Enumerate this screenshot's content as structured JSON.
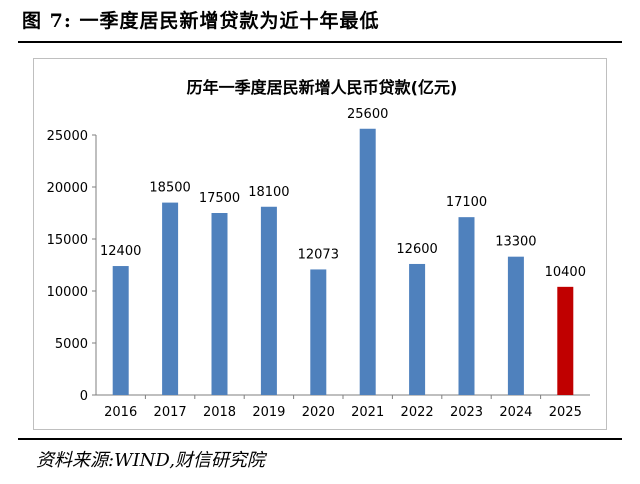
{
  "figure": {
    "title": "图 7:  一季度居民新增贷款为近十年最低",
    "source": "资料来源:WIND,财信研究院"
  },
  "chart_data": {
    "type": "bar",
    "title": "历年一季度居民新增人民币贷款(亿元)",
    "categories": [
      "2016",
      "2017",
      "2018",
      "2019",
      "2020",
      "2021",
      "2022",
      "2023",
      "2024",
      "2025"
    ],
    "values": [
      12400,
      18500,
      17500,
      18100,
      12073,
      25600,
      12600,
      17100,
      13300,
      10400
    ],
    "data_labels": [
      "12400",
      "18500",
      "17500",
      "18100",
      "12073",
      "25600",
      "12600",
      "17100",
      "13300",
      "10400"
    ],
    "ylim": [
      0,
      25000
    ],
    "yticks": [
      "0",
      "5000",
      "10000",
      "15000",
      "20000",
      "25000"
    ],
    "ytick_values": [
      0,
      5000,
      10000,
      15000,
      20000,
      25000
    ],
    "grid": false,
    "legend": "none",
    "colors": {
      "default": "#4f81bd",
      "highlight": "#c00000",
      "highlight_index": 9
    },
    "xlabel": "",
    "ylabel": ""
  }
}
